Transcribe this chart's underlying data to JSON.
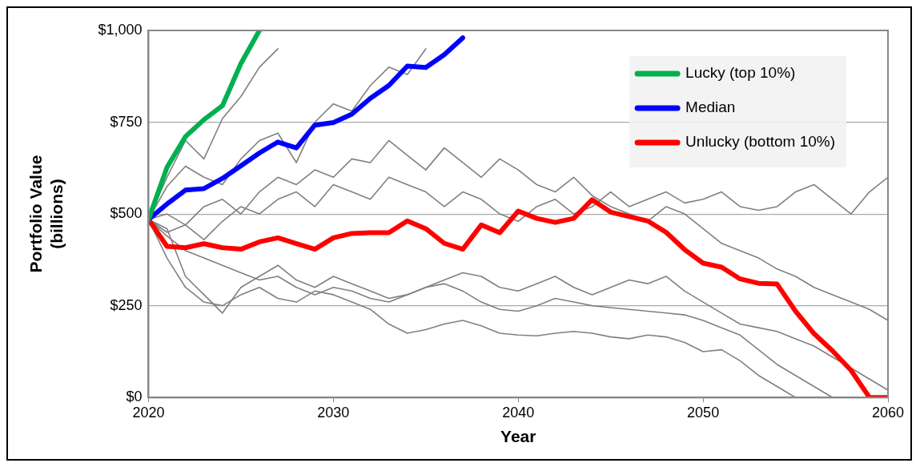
{
  "chart_data": {
    "type": "line",
    "xlabel": "Year",
    "ylabel": "Portfolio Value (billions)",
    "x": [
      2020,
      2021,
      2022,
      2023,
      2024,
      2025,
      2026,
      2027,
      2028,
      2029,
      2030,
      2031,
      2032,
      2033,
      2034,
      2035,
      2036,
      2037,
      2038,
      2039,
      2040,
      2041,
      2042,
      2043,
      2044,
      2045,
      2046,
      2047,
      2048,
      2049,
      2050,
      2051,
      2052,
      2053,
      2054,
      2055,
      2056,
      2057,
      2058,
      2059,
      2060
    ],
    "xlim": [
      2020,
      2060
    ],
    "xticks": [
      2020,
      2030,
      2040,
      2050,
      2060
    ],
    "ylim": [
      0,
      1000
    ],
    "yticks": [
      {
        "value": 0,
        "label": "$0"
      },
      {
        "value": 250,
        "label": "$250"
      },
      {
        "value": 500,
        "label": "$500"
      },
      {
        "value": 750,
        "label": "$750"
      },
      {
        "value": 1000,
        "label": "$1,000"
      }
    ],
    "grid": "y",
    "legend": "top right",
    "marker": "none",
    "line_style": "solid",
    "series": [
      {
        "color": "#808080",
        "values": [
          485,
          380,
          300,
          260,
          250,
          280,
          300,
          270,
          260,
          290,
          280,
          260,
          240,
          200,
          175,
          185,
          200,
          210,
          195,
          175,
          170,
          168,
          175,
          180,
          175,
          165,
          160,
          170,
          165,
          150,
          125,
          130,
          100,
          60,
          30,
          0,
          null,
          null,
          null,
          null,
          null
        ]
      },
      {
        "color": "#808080",
        "values": [
          485,
          460,
          330,
          280,
          230,
          300,
          330,
          360,
          320,
          300,
          330,
          310,
          290,
          270,
          280,
          300,
          310,
          290,
          260,
          240,
          235,
          250,
          270,
          260,
          250,
          245,
          240,
          235,
          230,
          225,
          210,
          190,
          170,
          130,
          90,
          60,
          30,
          0,
          null,
          null,
          null
        ]
      },
      {
        "color": "#808080",
        "values": [
          485,
          450,
          470,
          430,
          480,
          520,
          500,
          540,
          560,
          520,
          580,
          560,
          540,
          600,
          580,
          560,
          520,
          560,
          540,
          500,
          480,
          520,
          540,
          500,
          520,
          560,
          520,
          540,
          560,
          530,
          540,
          560,
          520,
          510,
          520,
          560,
          580,
          540,
          500,
          560,
          600
        ]
      },
      {
        "color": "#808080",
        "values": [
          485,
          440,
          400,
          380,
          360,
          340,
          320,
          330,
          300,
          280,
          300,
          290,
          270,
          260,
          280,
          300,
          320,
          340,
          330,
          300,
          290,
          310,
          330,
          300,
          280,
          300,
          320,
          310,
          330,
          290,
          260,
          230,
          200,
          190,
          180,
          160,
          140,
          110,
          80,
          50,
          20
        ]
      },
      {
        "color": "#808080",
        "values": [
          485,
          600,
          700,
          650,
          760,
          820,
          900,
          950,
          null,
          null,
          null,
          null,
          null,
          null,
          null,
          null,
          null,
          null,
          null,
          null,
          null,
          null,
          null,
          null,
          null,
          null,
          null,
          null,
          null,
          null,
          null,
          null,
          null,
          null,
          null,
          null,
          null,
          null,
          null,
          null,
          null
        ]
      },
      {
        "color": "#808080",
        "values": [
          485,
          575,
          630,
          600,
          580,
          650,
          700,
          720,
          640,
          750,
          800,
          780,
          850,
          900,
          880,
          950,
          null,
          null,
          null,
          null,
          null,
          null,
          null,
          null,
          null,
          null,
          null,
          null,
          null,
          null,
          null,
          null,
          null,
          null,
          null,
          null,
          null,
          null,
          null,
          null,
          null
        ]
      },
      {
        "color": "#808080",
        "values": [
          485,
          500,
          470,
          520,
          540,
          500,
          560,
          600,
          580,
          620,
          600,
          650,
          640,
          700,
          660,
          620,
          680,
          640,
          600,
          650,
          620,
          580,
          560,
          600,
          550,
          520,
          500,
          480,
          520,
          500,
          460,
          420,
          400,
          380,
          350,
          330,
          300,
          280,
          260,
          240,
          210
        ]
      },
      {
        "name": "Lucky (top 10%)",
        "color": "#00b050",
        "values": [
          485,
          627,
          711,
          757,
          795,
          910,
          1000,
          null,
          null,
          null,
          null,
          null,
          null,
          null,
          null,
          null,
          null,
          null,
          null,
          null,
          null,
          null,
          null,
          null,
          null,
          null,
          null,
          null,
          null,
          null,
          null,
          null,
          null,
          null,
          null,
          null,
          null,
          null,
          null,
          null,
          null
        ]
      },
      {
        "name": "Median",
        "color": "#0000ff",
        "values": [
          485,
          527,
          565,
          569,
          597,
          631,
          666,
          696,
          680,
          742,
          749,
          772,
          815,
          850,
          903,
          899,
          934,
          980,
          null,
          null,
          null,
          null,
          null,
          null,
          null,
          null,
          null,
          null,
          null,
          null,
          null,
          null,
          null,
          null,
          null,
          null,
          null,
          null,
          null,
          null,
          null
        ]
      },
      {
        "name": "Unlucky (bottom 10%)",
        "color": "#ff0000",
        "values": [
          485,
          412,
          408,
          419,
          408,
          404,
          424,
          435,
          419,
          404,
          435,
          447,
          449,
          449,
          481,
          460,
          420,
          404,
          470,
          449,
          508,
          488,
          477,
          488,
          539,
          505,
          493,
          481,
          450,
          403,
          366,
          355,
          323,
          311,
          309,
          235,
          174,
          127,
          74,
          0,
          0
        ]
      }
    ]
  }
}
